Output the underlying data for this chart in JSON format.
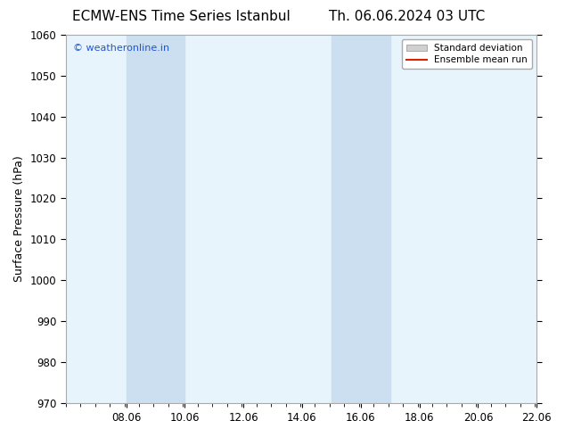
{
  "title_left": "ECMW-ENS Time Series Istanbul",
  "title_right": "Th. 06.06.2024 03 UTC",
  "ylabel": "Surface Pressure (hPa)",
  "xlim": [
    6.0,
    22.06
  ],
  "ylim": [
    970,
    1060
  ],
  "yticks": [
    970,
    980,
    990,
    1000,
    1010,
    1020,
    1030,
    1040,
    1050,
    1060
  ],
  "xticks": [
    8.06,
    10.06,
    12.06,
    14.06,
    16.06,
    18.06,
    20.06,
    22.06
  ],
  "xtick_labels": [
    "08.06",
    "10.06",
    "12.06",
    "14.06",
    "16.06",
    "18.06",
    "20.06",
    "22.06"
  ],
  "shaded_regions": [
    {
      "x_start": 8.06,
      "x_end": 10.06
    },
    {
      "x_start": 15.06,
      "x_end": 17.06
    }
  ],
  "shade_color": "#ccdff0",
  "bg_plot_color": "#e8f4fb",
  "watermark_text": "© weatheronline.in",
  "watermark_color": "#2255cc",
  "legend_items": [
    {
      "label": "Standard deviation",
      "color": "#d0d0d0",
      "type": "fill"
    },
    {
      "label": "Ensemble mean run",
      "color": "#dd2200",
      "type": "line"
    }
  ],
  "bg_color": "#ffffff",
  "spine_color": "#aaaaaa",
  "title_fontsize": 11,
  "axis_label_fontsize": 9,
  "tick_fontsize": 8.5,
  "watermark_fontsize": 8
}
